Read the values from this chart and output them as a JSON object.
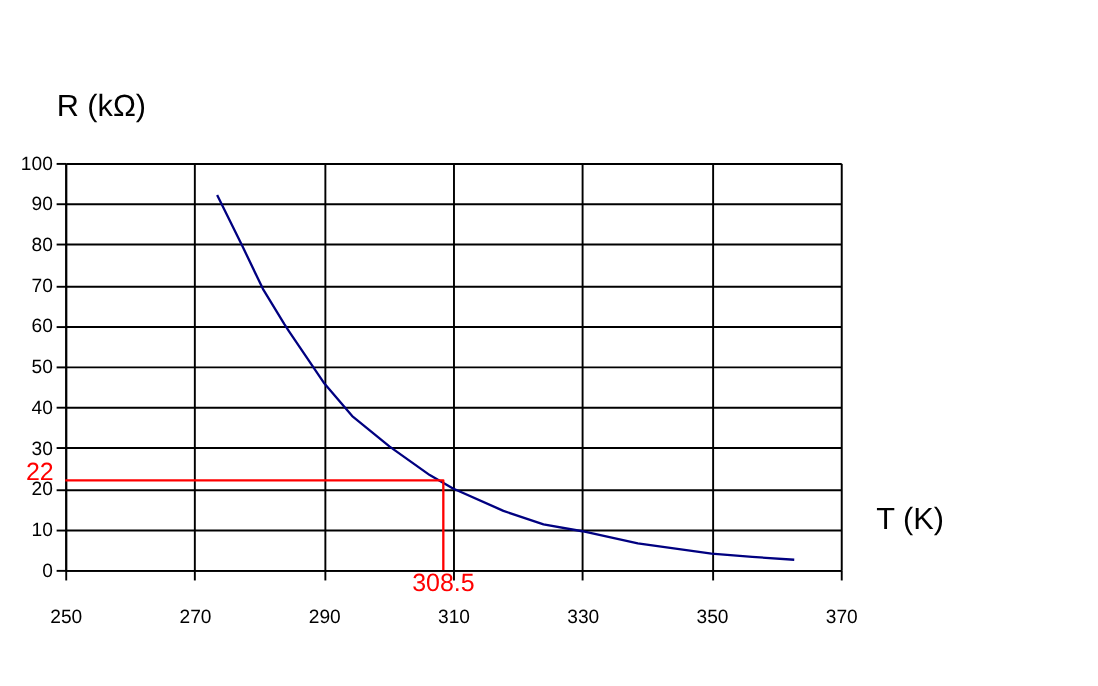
{
  "chart_data": {
    "type": "line",
    "xlabel": "T (K)",
    "ylabel": "R (kΩ)",
    "xlim": [
      250,
      370
    ],
    "xticks": [
      250,
      270,
      290,
      310,
      330,
      350,
      370
    ],
    "ylim": [
      0,
      100
    ],
    "yticks": [
      0,
      10,
      20,
      30,
      40,
      50,
      60,
      70,
      80,
      90,
      100
    ],
    "grid": true,
    "series": [
      {
        "color": "#000080",
        "x": [
          273.5,
          277.4,
          280.6,
          283.9,
          284.6,
          290,
          294.4,
          300.2,
          306.4,
          310,
          317.8,
          324,
          330,
          338.6,
          350,
          356.3,
          362.8
        ],
        "values": [
          92.1,
          79.6,
          69,
          60.4,
          58.7,
          46,
          37.8,
          30.3,
          23.3,
          20,
          14.5,
          11.2,
          9.5,
          6.5,
          4,
          3.2,
          2.5
        ]
      },
      {
        "color": "#ff0000",
        "x": [
          250,
          308.5,
          308.5
        ],
        "values": [
          22,
          22,
          0
        ]
      }
    ],
    "annotations": [
      {
        "text": "22",
        "x": 250,
        "y": 22
      },
      {
        "text": "308.5",
        "x": 308.5,
        "y": 0
      }
    ]
  }
}
